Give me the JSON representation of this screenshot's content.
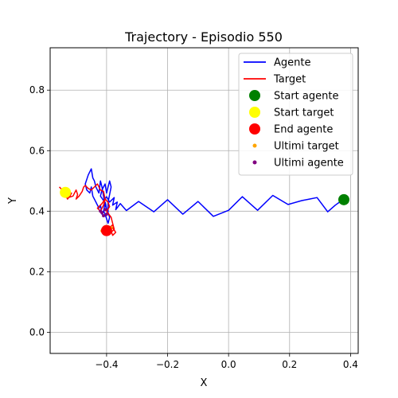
{
  "chart_data": {
    "type": "line",
    "title": "Trajectory - Episodio 550",
    "xlabel": "X",
    "ylabel": "Y",
    "xlim": [
      -0.585,
      0.425
    ],
    "ylim": [
      -0.07,
      0.94
    ],
    "xticks": [
      -0.4,
      -0.2,
      0.0,
      0.2,
      0.4
    ],
    "xtick_labels": [
      "−0.4",
      "−0.2",
      "0.0",
      "0.2",
      "0.4"
    ],
    "yticks": [
      0.0,
      0.2,
      0.4,
      0.6,
      0.8
    ],
    "ytick_labels": [
      "0.0",
      "0.2",
      "0.4",
      "0.6",
      "0.8"
    ],
    "grid": true,
    "legend_position": "top-right",
    "series": [
      {
        "name": "Agente",
        "kind": "line",
        "color": "#0000ff",
        "x": [
          0.375,
          0.35,
          0.325,
          0.29,
          0.265,
          0.24,
          0.195,
          0.145,
          0.095,
          0.045,
          0.0,
          -0.05,
          -0.1,
          -0.15,
          -0.2,
          -0.245,
          -0.295,
          -0.335,
          -0.355,
          -0.37,
          -0.365,
          -0.38,
          -0.375,
          -0.39,
          -0.4,
          -0.41,
          -0.42,
          -0.415,
          -0.405,
          -0.4,
          -0.39,
          -0.385,
          -0.395,
          -0.395,
          -0.405,
          -0.415,
          -0.42,
          -0.425,
          -0.435,
          -0.44,
          -0.445,
          -0.45,
          -0.46,
          -0.47,
          -0.465,
          -0.455,
          -0.45,
          -0.445,
          -0.435,
          -0.425,
          -0.42,
          -0.415,
          -0.41,
          -0.405,
          -0.4,
          -0.39,
          -0.395,
          -0.405,
          -0.41,
          -0.415
        ],
        "y": [
          0.438,
          0.42,
          0.398,
          0.445,
          0.44,
          0.435,
          0.422,
          0.452,
          0.403,
          0.448,
          0.403,
          0.383,
          0.432,
          0.39,
          0.438,
          0.398,
          0.432,
          0.402,
          0.425,
          0.405,
          0.43,
          0.42,
          0.445,
          0.43,
          0.448,
          0.435,
          0.45,
          0.47,
          0.49,
          0.46,
          0.5,
          0.48,
          0.43,
          0.395,
          0.42,
          0.48,
          0.5,
          0.46,
          0.48,
          0.5,
          0.51,
          0.54,
          0.52,
          0.49,
          0.47,
          0.46,
          0.48,
          0.45,
          0.43,
          0.41,
          0.42,
          0.39,
          0.4,
          0.43,
          0.41,
          0.38,
          0.36,
          0.39,
          0.4,
          0.395
        ]
      },
      {
        "name": "Target",
        "kind": "line",
        "color": "#ff0000",
        "x": [
          -0.555,
          -0.545,
          -0.535,
          -0.528,
          -0.52,
          -0.515,
          -0.525,
          -0.51,
          -0.5,
          -0.495,
          -0.5,
          -0.49,
          -0.48,
          -0.475,
          -0.47,
          -0.46,
          -0.45,
          -0.44,
          -0.43,
          -0.42,
          -0.41,
          -0.405,
          -0.41,
          -0.42,
          -0.43,
          -0.415,
          -0.405,
          -0.395,
          -0.39,
          -0.4,
          -0.385,
          -0.38,
          -0.375,
          -0.39,
          -0.38,
          -0.37,
          -0.38,
          -0.39,
          -0.4,
          -0.41,
          -0.405,
          -0.395,
          -0.385,
          -0.375,
          -0.38,
          -0.39,
          -0.395,
          -0.385,
          -0.4
        ],
        "y": [
          0.48,
          0.47,
          0.455,
          0.44,
          0.45,
          0.46,
          0.445,
          0.45,
          0.47,
          0.455,
          0.44,
          0.45,
          0.465,
          0.48,
          0.485,
          0.475,
          0.47,
          0.48,
          0.49,
          0.47,
          0.465,
          0.44,
          0.42,
          0.4,
          0.41,
          0.425,
          0.44,
          0.43,
          0.415,
          0.4,
          0.38,
          0.36,
          0.34,
          0.35,
          0.32,
          0.33,
          0.345,
          0.34,
          0.33,
          0.335,
          0.35,
          0.345,
          0.33,
          0.34,
          0.355,
          0.345,
          0.335,
          0.34,
          0.34
        ]
      },
      {
        "name": "Start agente",
        "kind": "marker",
        "color": "#008000",
        "x": [
          0.378
        ],
        "y": [
          0.438
        ]
      },
      {
        "name": "Start target",
        "kind": "marker",
        "color": "#ffff00",
        "x": [
          -0.535
        ],
        "y": [
          0.462
        ]
      },
      {
        "name": "End agente",
        "kind": "marker",
        "color": "#ff0000",
        "x": [
          -0.4
        ],
        "y": [
          0.336
        ]
      },
      {
        "name": "Ultimi target",
        "kind": "scatter",
        "color": "#ffa500",
        "x": [
          -0.415,
          -0.405,
          -0.395,
          -0.41,
          -0.39,
          -0.4,
          -0.385
        ],
        "y": [
          0.335,
          0.338,
          0.332,
          0.342,
          0.34,
          0.33,
          0.345
        ]
      },
      {
        "name": "Ultimi agente",
        "kind": "scatter",
        "color": "#800080",
        "x": [
          -0.415,
          -0.405,
          -0.41,
          -0.42,
          -0.4
        ],
        "y": [
          0.395,
          0.405,
          0.385,
          0.4,
          0.39
        ]
      }
    ]
  }
}
